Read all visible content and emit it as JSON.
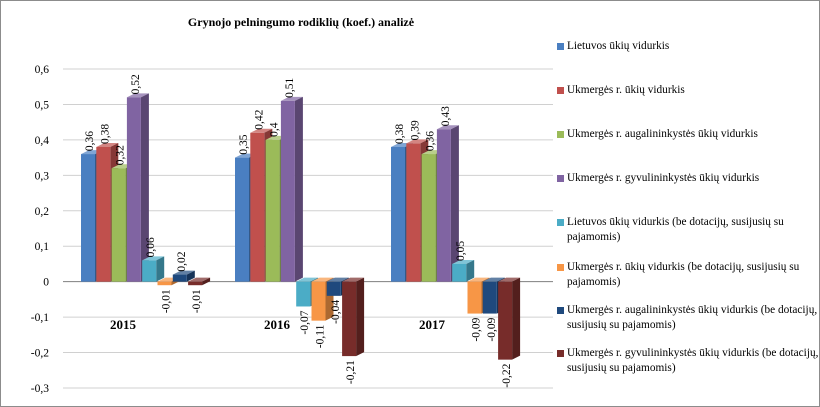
{
  "chart_data": {
    "type": "bar",
    "title": "Grynojo pelningumo rodiklių (koef.) analizė",
    "xlabel": "",
    "ylabel": "",
    "categories": [
      "2015",
      "2016",
      "2017"
    ],
    "ylim": [
      -0.3,
      0.6
    ],
    "yticks": [
      "0,6",
      "0,5",
      "0,4",
      "0,3",
      "0,2",
      "0,1",
      "0",
      "-0,1",
      "-0,2",
      "-0,3"
    ],
    "grid": true,
    "legend_position": "right",
    "series": [
      {
        "name": "Lietuvos ūkių vidurkis",
        "color": "#4a7fc1",
        "values": [
          0.36,
          0.35,
          0.38
        ],
        "labels": [
          "0,36",
          "0,35",
          "0,38"
        ]
      },
      {
        "name": "Ukmergės r. ūkių vidurkis",
        "color": "#c0504d",
        "values": [
          0.38,
          0.42,
          0.39
        ],
        "labels": [
          "0,38",
          "0,42",
          "0,39"
        ]
      },
      {
        "name": "Ukmergės r. augalininkystės ūkių vidurkis",
        "color": "#9bbb59",
        "values": [
          0.32,
          0.4,
          0.36
        ],
        "labels": [
          "0,32",
          "0,4",
          "0,36"
        ]
      },
      {
        "name": "Ukmergės r. gyvulininkystės ūkių vidurkis",
        "color": "#8064a2",
        "values": [
          0.52,
          0.51,
          0.43
        ],
        "labels": [
          "0,52",
          "0,51",
          "0,43"
        ]
      },
      {
        "name": "Lietuvos ūkių vidurkis (be dotacijų, susijusių su pajamomis)",
        "color": "#4bacc6",
        "values": [
          0.06,
          -0.07,
          0.05
        ],
        "labels": [
          "0,06",
          "-0,07",
          "0,05"
        ]
      },
      {
        "name": "Ukmergės r. ūkių vidurkis (be dotacijų, susijusių su pajamomis)",
        "color": "#f79646",
        "values": [
          -0.01,
          -0.11,
          -0.09
        ],
        "labels": [
          "-0,01",
          "-0,11",
          "-0,09"
        ]
      },
      {
        "name": "Ukmergės r. augalininkystės ūkių vidurkis (be dotacijų, susijusių su pajamomis)",
        "color": "#1f497d",
        "values": [
          0.02,
          -0.04,
          -0.09
        ],
        "labels": [
          "0,02",
          "-0,04",
          "-0,09"
        ]
      },
      {
        "name": "Ukmergės r. gyvulininkystės ūkių vidurkis (be dotacijų, susijusių su pajamomis)",
        "color": "#772c2a",
        "values": [
          -0.01,
          -0.21,
          -0.22
        ],
        "labels": [
          "-0,01",
          "-0,21",
          "-0,22"
        ]
      }
    ]
  }
}
